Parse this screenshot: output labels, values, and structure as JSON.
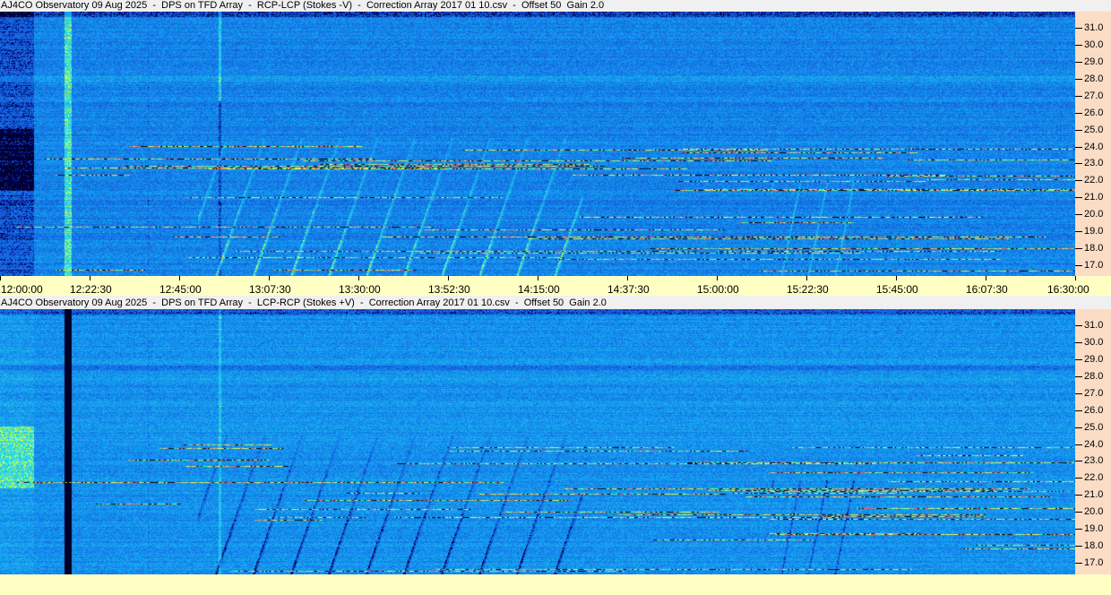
{
  "panels": [
    {
      "title": "AJ4CO Observatory 09 Aug 2025  -  DPS on TFD Array  -  RCP-LCP (Stokes -V)  -  Correction Array 2017 01 10.csv  -  Offset 50  Gain 2.0"
    },
    {
      "title": "AJ4CO Observatory 09 Aug 2025  -  DPS on TFD Array  -  LCP-RCP (Stokes +V)  -  Correction Array 2017 01 10.csv  -  Offset 50  Gain 2.0"
    }
  ],
  "chart_data": {
    "type": "heatmap",
    "x_ticks": [
      "12:00:00",
      "12:22:30",
      "12:45:00",
      "13:07:30",
      "13:30:00",
      "13:52:30",
      "14:15:00",
      "14:37:30",
      "15:00:00",
      "15:22:30",
      "15:45:00",
      "16:07:30",
      "16:30:00"
    ],
    "xlim": [
      "12:00:00",
      "16:30:00"
    ],
    "y_ticks": [
      "31.0",
      "30.0",
      "29.0",
      "28.0",
      "27.0",
      "26.0",
      "25.0",
      "24.0",
      "23.0",
      "22.0",
      "21.0",
      "20.0",
      "19.0",
      "18.0",
      "17.0"
    ],
    "ylim": [
      16.4,
      31.8
    ],
    "colors": {
      "background": "#1e5ae6",
      "burst": "#40e0e0",
      "interference": "#ffff40"
    }
  }
}
